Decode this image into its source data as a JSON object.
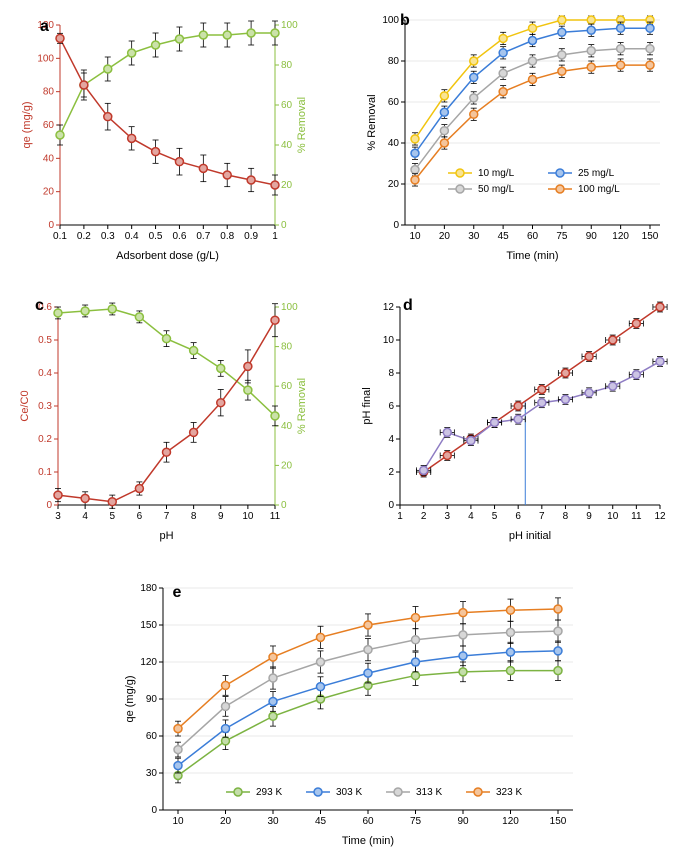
{
  "global": {
    "bg": "#ffffff",
    "font": "Arial",
    "axis_color": "#000000",
    "grid_color": "#e8e8e8",
    "error_cap": 4
  },
  "panel_a": {
    "label": "a",
    "x_title": "Adsorbent dose (g/L)",
    "y1_title": "qe (mg/g)",
    "y2_title": "% Removal",
    "y1_color": "#c0392b",
    "y2_color": "#8bbf3f",
    "x_ticks": [
      0.1,
      0.2,
      0.3,
      0.4,
      0.5,
      0.6,
      0.7,
      0.8,
      0.9,
      1
    ],
    "y1_lim": [
      0,
      120
    ],
    "y1_step": 20,
    "y2_lim": [
      0,
      100
    ],
    "y2_step": 20,
    "series1": {
      "color": "#c0392b",
      "x": [
        0.1,
        0.2,
        0.3,
        0.4,
        0.5,
        0.6,
        0.7,
        0.8,
        0.9,
        1
      ],
      "y": [
        112,
        84,
        65,
        52,
        44,
        38,
        34,
        30,
        27,
        24
      ],
      "err": [
        3,
        9,
        8,
        7,
        7,
        8,
        8,
        7,
        7,
        6
      ]
    },
    "series2": {
      "color": "#8bbf3f",
      "x": [
        0.1,
        0.2,
        0.3,
        0.4,
        0.5,
        0.6,
        0.7,
        0.8,
        0.9,
        1
      ],
      "y": [
        45,
        70,
        78,
        86,
        90,
        93,
        95,
        95,
        96,
        96
      ],
      "err": [
        5,
        6,
        6,
        6,
        6,
        6,
        6,
        6,
        6,
        6
      ]
    }
  },
  "panel_b": {
    "label": "b",
    "x_title": "Time (min)",
    "y_title": "% Removal",
    "y_color": "#000000",
    "x_vals": [
      10,
      20,
      30,
      45,
      60,
      75,
      90,
      120,
      150
    ],
    "y_lim": [
      0,
      100
    ],
    "y_step": 20,
    "legend": [
      {
        "label": "10 mg/L",
        "color": "#f1c40f"
      },
      {
        "label": "25 mg/L",
        "color": "#3b7dd8"
      },
      {
        "label": "50 mg/L",
        "color": "#a6a6a6"
      },
      {
        "label": "100 mg/L",
        "color": "#e67e22"
      }
    ],
    "series": [
      {
        "color": "#f1c40f",
        "y": [
          42,
          63,
          80,
          91,
          96,
          100,
          100,
          100,
          100
        ],
        "err": [
          3,
          3,
          3,
          3,
          3,
          2,
          2,
          2,
          2
        ]
      },
      {
        "color": "#3b7dd8",
        "y": [
          35,
          55,
          72,
          84,
          90,
          94,
          95,
          96,
          96
        ],
        "err": [
          3,
          3,
          3,
          3,
          3,
          3,
          3,
          3,
          3
        ]
      },
      {
        "color": "#a6a6a6",
        "y": [
          27,
          46,
          62,
          74,
          80,
          83,
          85,
          86,
          86
        ],
        "err": [
          3,
          3,
          3,
          3,
          3,
          3,
          3,
          3,
          3
        ]
      },
      {
        "color": "#e67e22",
        "y": [
          22,
          40,
          54,
          65,
          71,
          75,
          77,
          78,
          78
        ],
        "err": [
          3,
          3,
          3,
          3,
          3,
          3,
          3,
          3,
          3
        ]
      }
    ]
  },
  "panel_c": {
    "label": "c",
    "x_title": "pH",
    "y1_title": "Ce/C0",
    "y2_title": "% Removal",
    "y1_color": "#c0392b",
    "y2_color": "#8bbf3f",
    "x_ticks": [
      3,
      4,
      5,
      6,
      7,
      8,
      9,
      10,
      11
    ],
    "y1_lim": [
      0,
      0.6
    ],
    "y1_step": 0.1,
    "y2_lim": [
      0,
      100
    ],
    "y2_step": 20,
    "series1": {
      "color": "#c0392b",
      "x": [
        3,
        4,
        5,
        6,
        7,
        8,
        9,
        10,
        11
      ],
      "y": [
        0.03,
        0.02,
        0.01,
        0.05,
        0.16,
        0.22,
        0.31,
        0.42,
        0.56
      ],
      "err": [
        0.02,
        0.02,
        0.02,
        0.02,
        0.03,
        0.03,
        0.04,
        0.05,
        0.05
      ]
    },
    "series2": {
      "color": "#8bbf3f",
      "x": [
        3,
        4,
        5,
        6,
        7,
        8,
        9,
        10,
        11
      ],
      "y": [
        97,
        98,
        99,
        95,
        84,
        78,
        69,
        58,
        45
      ],
      "err": [
        3,
        3,
        3,
        3,
        4,
        4,
        4,
        5,
        5
      ]
    }
  },
  "panel_d": {
    "label": "d",
    "x_title": "pH initial",
    "y_title": "pH final",
    "x_ticks": [
      1,
      2,
      3,
      4,
      5,
      6,
      7,
      8,
      9,
      10,
      11,
      12
    ],
    "y_lim": [
      0,
      12
    ],
    "y_step": 2,
    "ref_color": "#c0392b",
    "data_color": "#8e7cc3",
    "vline_color": "#3b7dd8",
    "vline_x": 6.3,
    "series_ref": {
      "x": [
        2,
        3,
        4,
        5,
        6,
        7,
        8,
        9,
        10,
        11,
        12
      ],
      "y": [
        2,
        3,
        4,
        5,
        6,
        7,
        8,
        9,
        10,
        11,
        12
      ],
      "xerr": 0.3,
      "yerr": 0.3
    },
    "series_data": {
      "x": [
        2,
        3,
        4,
        5,
        6,
        7,
        8,
        9,
        10,
        11,
        12
      ],
      "y": [
        2.1,
        4.4,
        3.9,
        5.0,
        5.2,
        6.2,
        6.4,
        6.8,
        7.2,
        7.9,
        8.7
      ],
      "xerr": 0.3,
      "yerr": 0.3
    }
  },
  "panel_e": {
    "label": "e",
    "x_title": "Time (min)",
    "y_title": "qe (mg/g)",
    "x_vals": [
      10,
      20,
      30,
      45,
      60,
      75,
      90,
      120,
      150
    ],
    "y_lim": [
      0,
      180
    ],
    "y_step": 30,
    "legend": [
      {
        "label": "293 K",
        "color": "#7cb342"
      },
      {
        "label": "303 K",
        "color": "#3b7dd8"
      },
      {
        "label": "313 K",
        "color": "#a6a6a6"
      },
      {
        "label": "323 K",
        "color": "#e67e22"
      }
    ],
    "series": [
      {
        "color": "#7cb342",
        "y": [
          28,
          56,
          76,
          90,
          101,
          109,
          112,
          113,
          113
        ],
        "err": [
          6,
          7,
          8,
          8,
          8,
          8,
          8,
          8,
          8
        ]
      },
      {
        "color": "#3b7dd8",
        "y": [
          36,
          66,
          88,
          100,
          111,
          120,
          125,
          128,
          129
        ],
        "err": [
          6,
          7,
          8,
          8,
          8,
          8,
          8,
          8,
          8
        ]
      },
      {
        "color": "#a6a6a6",
        "y": [
          49,
          84,
          107,
          120,
          130,
          138,
          142,
          144,
          145
        ],
        "err": [
          6,
          8,
          9,
          9,
          9,
          9,
          9,
          9,
          9
        ]
      },
      {
        "color": "#e67e22",
        "y": [
          66,
          101,
          124,
          140,
          150,
          156,
          160,
          162,
          163
        ],
        "err": [
          6,
          8,
          9,
          9,
          9,
          9,
          9,
          9,
          9
        ]
      }
    ]
  }
}
